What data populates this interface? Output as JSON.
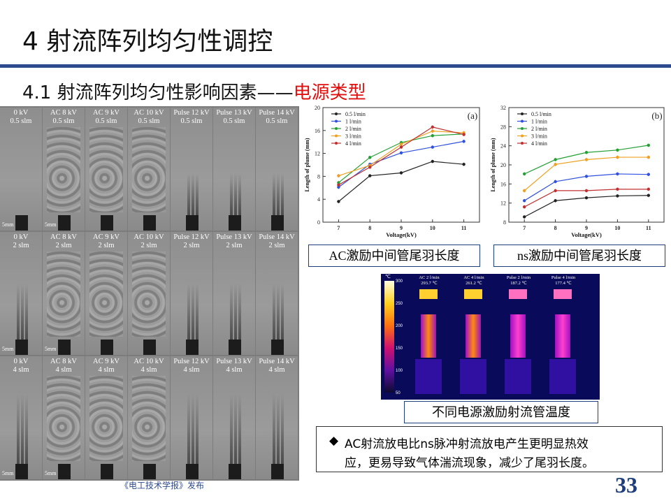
{
  "title": "4  射流阵列均匀性调控",
  "subtitle": {
    "prefix": "4.1  射流阵列均匀性影响因素——",
    "highlight": "电源类型"
  },
  "image_grid": {
    "rows": [
      {
        "cells": [
          "0 kV\n0.5 slm",
          "AC 8 kV\n0.5 slm",
          "AC 9 kV\n0.5 slm",
          "AC 10 kV\n0.5 slm",
          "Pulse 12 kV\n0.5 slm",
          "Pulse 13 kV\n0.5 slm",
          "Pulse 14 kV\n0.5 slm"
        ]
      },
      {
        "cells": [
          "0 kV\n2 slm",
          "AC 8 kV\n2 slm",
          "AC 9 kV\n2 slm",
          "AC 10 kV\n2 slm",
          "Pulse 12 kV\n2 slm",
          "Pulse 13 kV\n2 slm",
          "Pulse 14 kV\n2 slm"
        ]
      },
      {
        "cells": [
          "0 kV\n4 slm",
          "AC 8 kV\n4 slm",
          "AC 9 kV\n4 slm",
          "AC 10 kV\n4 slm",
          "Pulse 12 kV\n4 slm",
          "Pulse 13 kV\n4 slm",
          "Pulse 14 kV\n4 slm"
        ]
      }
    ],
    "scale_label": "5mm"
  },
  "chart_data": [
    {
      "type": "line",
      "panel": "(a)",
      "xlabel": "Voltage(kV)",
      "ylabel": "Length of plume (mm)",
      "x": [
        7,
        8,
        9,
        10,
        11
      ],
      "xlim": [
        6.5,
        11.5
      ],
      "ylim": [
        0,
        20
      ],
      "yticks": [
        0,
        4,
        8,
        12,
        16,
        20
      ],
      "series": [
        {
          "name": "0.5 l/min",
          "color": "#222222",
          "values": [
            3.6,
            8.1,
            8.6,
            10.6,
            10.1
          ]
        },
        {
          "name": "1 l/min",
          "color": "#3050e0",
          "values": [
            6.1,
            10.1,
            12.1,
            13.1,
            14.1
          ]
        },
        {
          "name": "2 l/min",
          "color": "#22a033",
          "values": [
            6.9,
            11.3,
            13.9,
            15.1,
            15.4
          ]
        },
        {
          "name": "3 l/min",
          "color": "#f0a020",
          "values": [
            8.1,
            9.9,
            13.6,
            15.9,
            15.6
          ]
        },
        {
          "name": "4 l/min",
          "color": "#c03030",
          "values": [
            6.5,
            9.6,
            13.1,
            16.6,
            15.3
          ]
        }
      ]
    },
    {
      "type": "line",
      "panel": "(b)",
      "xlabel": "Voltage(kV)",
      "ylabel": "Length of plume (mm)",
      "x": [
        7,
        8,
        9,
        10,
        11
      ],
      "xlim": [
        6.5,
        11.5
      ],
      "ylim": [
        8,
        32
      ],
      "yticks": [
        8,
        12,
        16,
        20,
        24,
        28,
        32
      ],
      "series": [
        {
          "name": "0.5 l/min",
          "color": "#222222",
          "values": [
            9.1,
            12.5,
            13.1,
            13.5,
            13.6
          ]
        },
        {
          "name": "1 l/min",
          "color": "#3050e0",
          "values": [
            12.5,
            16.5,
            17.6,
            18.1,
            18.0
          ]
        },
        {
          "name": "2 l/min",
          "color": "#22a033",
          "values": [
            18.1,
            21.1,
            22.6,
            23.1,
            24.1
          ]
        },
        {
          "name": "3 l/min",
          "color": "#f0a020",
          "values": [
            14.6,
            20.1,
            21.1,
            21.6,
            21.6
          ]
        },
        {
          "name": "4 l/min",
          "color": "#c03030",
          "values": [
            11.2,
            14.6,
            14.6,
            14.9,
            14.9
          ]
        }
      ]
    }
  ],
  "captions": {
    "ac": "AC激励中间管尾羽长度",
    "ns": "ns激励中间管尾羽长度",
    "thermal": "不同电源激励射流管温度"
  },
  "thermal": {
    "unit": "℃",
    "scale_ticks": [
      "300",
      "250",
      "200",
      "150",
      "100",
      "50"
    ],
    "panels": [
      {
        "label": "AC 2 l/min",
        "temp": "293.7 ℃"
      },
      {
        "label": "AC 4 l/min",
        "temp": "261.2 ℃"
      },
      {
        "label": "Pulse 2 l/min",
        "temp": "187.2 ℃"
      },
      {
        "label": "Pulse 4 l/min",
        "temp": "177.4 ℃"
      }
    ]
  },
  "note": {
    "bullet": "◆",
    "line1": "AC射流放电比ns脉冲射流放电产生更明显热效",
    "line2": "应，更易导致气体湍流现象，减少了尾羽长度。"
  },
  "footer": "《电工技术学报》发布",
  "page_number": "33"
}
